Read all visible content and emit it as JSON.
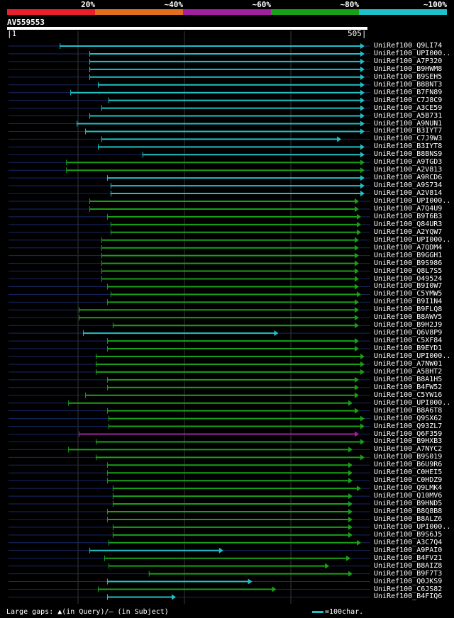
{
  "legend": {
    "bands": [
      {
        "label": "20%",
        "color": "#e8202c"
      },
      {
        "label": "~40%",
        "color": "#e07020"
      },
      {
        "label": "~60%",
        "color": "#a020a0"
      },
      {
        "label": "~80%",
        "color": "#18a018"
      },
      {
        "label": "~100%",
        "color": "#20c0c8"
      }
    ]
  },
  "query": {
    "id": "AV559553",
    "start": "1",
    "end": "505"
  },
  "hits": [
    {
      "label": "UniRef100_Q9LI74",
      "start": 74,
      "end": 505,
      "color": "cyan"
    },
    {
      "label": "UniRef100_UPI000..",
      "start": 116,
      "end": 505,
      "color": "cyan"
    },
    {
      "label": "UniRef100_A7P320",
      "start": 116,
      "end": 505,
      "color": "cyan"
    },
    {
      "label": "UniRef100_B9HWM8",
      "start": 116,
      "end": 505,
      "color": "cyan"
    },
    {
      "label": "UniRef100_B9SEH5",
      "start": 116,
      "end": 505,
      "color": "cyan"
    },
    {
      "label": "UniRef100_B8BNT3",
      "start": 128,
      "end": 505,
      "color": "cyan"
    },
    {
      "label": "UniRef100_B7FN89",
      "start": 89,
      "end": 505,
      "color": "cyan"
    },
    {
      "label": "UniRef100_C7J8C9",
      "start": 143,
      "end": 505,
      "color": "cyan"
    },
    {
      "label": "UniRef100_A3CE59",
      "start": 133,
      "end": 505,
      "color": "cyan"
    },
    {
      "label": "UniRef100_A5B731",
      "start": 116,
      "end": 505,
      "color": "cyan"
    },
    {
      "label": "UniRef100_A9NUN1",
      "start": 98,
      "end": 505,
      "color": "cyan"
    },
    {
      "label": "UniRef100_B3IYT7",
      "start": 110,
      "end": 505,
      "color": "cyan"
    },
    {
      "label": "UniRef100_C7J9W3",
      "start": 133,
      "end": 472,
      "color": "cyan"
    },
    {
      "label": "UniRef100_B3IYT8",
      "start": 128,
      "end": 505,
      "color": "cyan"
    },
    {
      "label": "UniRef100_B8BNS9",
      "start": 191,
      "end": 505,
      "color": "cyan"
    },
    {
      "label": "UniRef100_A9TGD3",
      "start": 83,
      "end": 505,
      "color": "green"
    },
    {
      "label": "UniRef100_A2V813",
      "start": 83,
      "end": 505,
      "color": "green"
    },
    {
      "label": "UniRef100_A9RCD6",
      "start": 141,
      "end": 505,
      "color": "cyan"
    },
    {
      "label": "UniRef100_A9S734",
      "start": 146,
      "end": 505,
      "color": "cyan"
    },
    {
      "label": "UniRef100_A2V814",
      "start": 146,
      "end": 505,
      "color": "cyan"
    },
    {
      "label": "UniRef100_UPI000..",
      "start": 116,
      "end": 497,
      "color": "green"
    },
    {
      "label": "UniRef100_A7Q4U9",
      "start": 116,
      "end": 497,
      "color": "green"
    },
    {
      "label": "UniRef100_B9T6B3",
      "start": 141,
      "end": 500,
      "color": "green"
    },
    {
      "label": "UniRef100_Q84UR3",
      "start": 146,
      "end": 500,
      "color": "green"
    },
    {
      "label": "UniRef100_A2YQW7",
      "start": 146,
      "end": 500,
      "color": "green"
    },
    {
      "label": "UniRef100_UPI000..",
      "start": 133,
      "end": 497,
      "color": "green"
    },
    {
      "label": "UniRef100_A7QDM4",
      "start": 133,
      "end": 497,
      "color": "green"
    },
    {
      "label": "UniRef100_B9GGH1",
      "start": 133,
      "end": 497,
      "color": "green"
    },
    {
      "label": "UniRef100_B9S986",
      "start": 133,
      "end": 497,
      "color": "green"
    },
    {
      "label": "UniRef100_Q8L7S5",
      "start": 133,
      "end": 497,
      "color": "green"
    },
    {
      "label": "UniRef100_O49524",
      "start": 133,
      "end": 497,
      "color": "green"
    },
    {
      "label": "UniRef100_B9I0W7",
      "start": 141,
      "end": 497,
      "color": "green"
    },
    {
      "label": "UniRef100_C5YMW5",
      "start": 146,
      "end": 500,
      "color": "green"
    },
    {
      "label": "UniRef100_B9I1N4",
      "start": 141,
      "end": 497,
      "color": "green"
    },
    {
      "label": "UniRef100_B9FLQ8",
      "start": 101,
      "end": 497,
      "color": "green"
    },
    {
      "label": "UniRef100_B8AWV5",
      "start": 101,
      "end": 497,
      "color": "green"
    },
    {
      "label": "UniRef100_B9H2J9",
      "start": 149,
      "end": 497,
      "color": "green"
    },
    {
      "label": "UniRef100_Q6V8P9",
      "start": 107,
      "end": 383,
      "color": "cyan"
    },
    {
      "label": "UniRef100_C5XF84",
      "start": 141,
      "end": 497,
      "color": "green"
    },
    {
      "label": "UniRef100_B9EYD1",
      "start": 141,
      "end": 497,
      "color": "green"
    },
    {
      "label": "UniRef100_UPI000..",
      "start": 125,
      "end": 505,
      "color": "green"
    },
    {
      "label": "UniRef100_A7NW01",
      "start": 125,
      "end": 505,
      "color": "green"
    },
    {
      "label": "UniRef100_A5BHT2",
      "start": 125,
      "end": 505,
      "color": "green"
    },
    {
      "label": "UniRef100_B8A1H5",
      "start": 141,
      "end": 497,
      "color": "green"
    },
    {
      "label": "UniRef100_B4FW52",
      "start": 141,
      "end": 497,
      "color": "green"
    },
    {
      "label": "UniRef100_C5YW16",
      "start": 110,
      "end": 497,
      "color": "green"
    },
    {
      "label": "UniRef100_UPI000..",
      "start": 86,
      "end": 488,
      "color": "green"
    },
    {
      "label": "UniRef100_B8A6T8",
      "start": 141,
      "end": 497,
      "color": "green"
    },
    {
      "label": "UniRef100_Q9SX62",
      "start": 143,
      "end": 505,
      "color": "green"
    },
    {
      "label": "UniRef100_Q93ZL7",
      "start": 143,
      "end": 505,
      "color": "green"
    },
    {
      "label": "UniRef100_Q6F359",
      "start": 101,
      "end": 497,
      "color": "purple"
    },
    {
      "label": "UniRef100_B9HXB3",
      "start": 125,
      "end": 505,
      "color": "green"
    },
    {
      "label": "UniRef100_A7NYC2",
      "start": 86,
      "end": 488,
      "color": "green"
    },
    {
      "label": "UniRef100_B9S019",
      "start": 125,
      "end": 505,
      "color": "green"
    },
    {
      "label": "UniRef100_B6U9R6",
      "start": 141,
      "end": 488,
      "color": "green"
    },
    {
      "label": "UniRef100_C0HEI5",
      "start": 141,
      "end": 488,
      "color": "green"
    },
    {
      "label": "UniRef100_C0HDZ9",
      "start": 141,
      "end": 488,
      "color": "green"
    },
    {
      "label": "UniRef100_Q9LMK4",
      "start": 149,
      "end": 500,
      "color": "green"
    },
    {
      "label": "UniRef100_Q10MV6",
      "start": 149,
      "end": 488,
      "color": "green"
    },
    {
      "label": "UniRef100_B9HND5",
      "start": 149,
      "end": 488,
      "color": "green"
    },
    {
      "label": "UniRef100_B8Q8B8",
      "start": 141,
      "end": 488,
      "color": "green"
    },
    {
      "label": "UniRef100_B8ALZ6",
      "start": 141,
      "end": 488,
      "color": "green"
    },
    {
      "label": "UniRef100_UPI000..",
      "start": 149,
      "end": 488,
      "color": "green"
    },
    {
      "label": "UniRef100_B9S6J5",
      "start": 149,
      "end": 488,
      "color": "green"
    },
    {
      "label": "UniRef100_A3C7Q4",
      "start": 143,
      "end": 500,
      "color": "green"
    },
    {
      "label": "UniRef100_A9PAI0",
      "start": 116,
      "end": 305,
      "color": "cyan"
    },
    {
      "label": "UniRef100_B4FV21",
      "start": 137,
      "end": 485,
      "color": "green"
    },
    {
      "label": "UniRef100_B8AIZ8",
      "start": 143,
      "end": 455,
      "color": "green"
    },
    {
      "label": "UniRef100_B9F7T3",
      "start": 200,
      "end": 488,
      "color": "green"
    },
    {
      "label": "UniRef100_Q0JKS9",
      "start": 141,
      "end": 346,
      "color": "cyan"
    },
    {
      "label": "UniRef100_C6JS82",
      "start": 128,
      "end": 380,
      "color": "green"
    },
    {
      "label": "UniRef100_B4FIQ6",
      "start": 141,
      "end": 238,
      "color": "cyan"
    }
  ],
  "footer": {
    "gaps_text": "Large gaps: ▲(in Query)/— (in Subject)",
    "scale_text": "=100char."
  },
  "colors": {
    "cyan": "#20c0c8",
    "green": "#18a018",
    "purple": "#a020a0",
    "faint": "#182868",
    "query": "#ffffff"
  }
}
